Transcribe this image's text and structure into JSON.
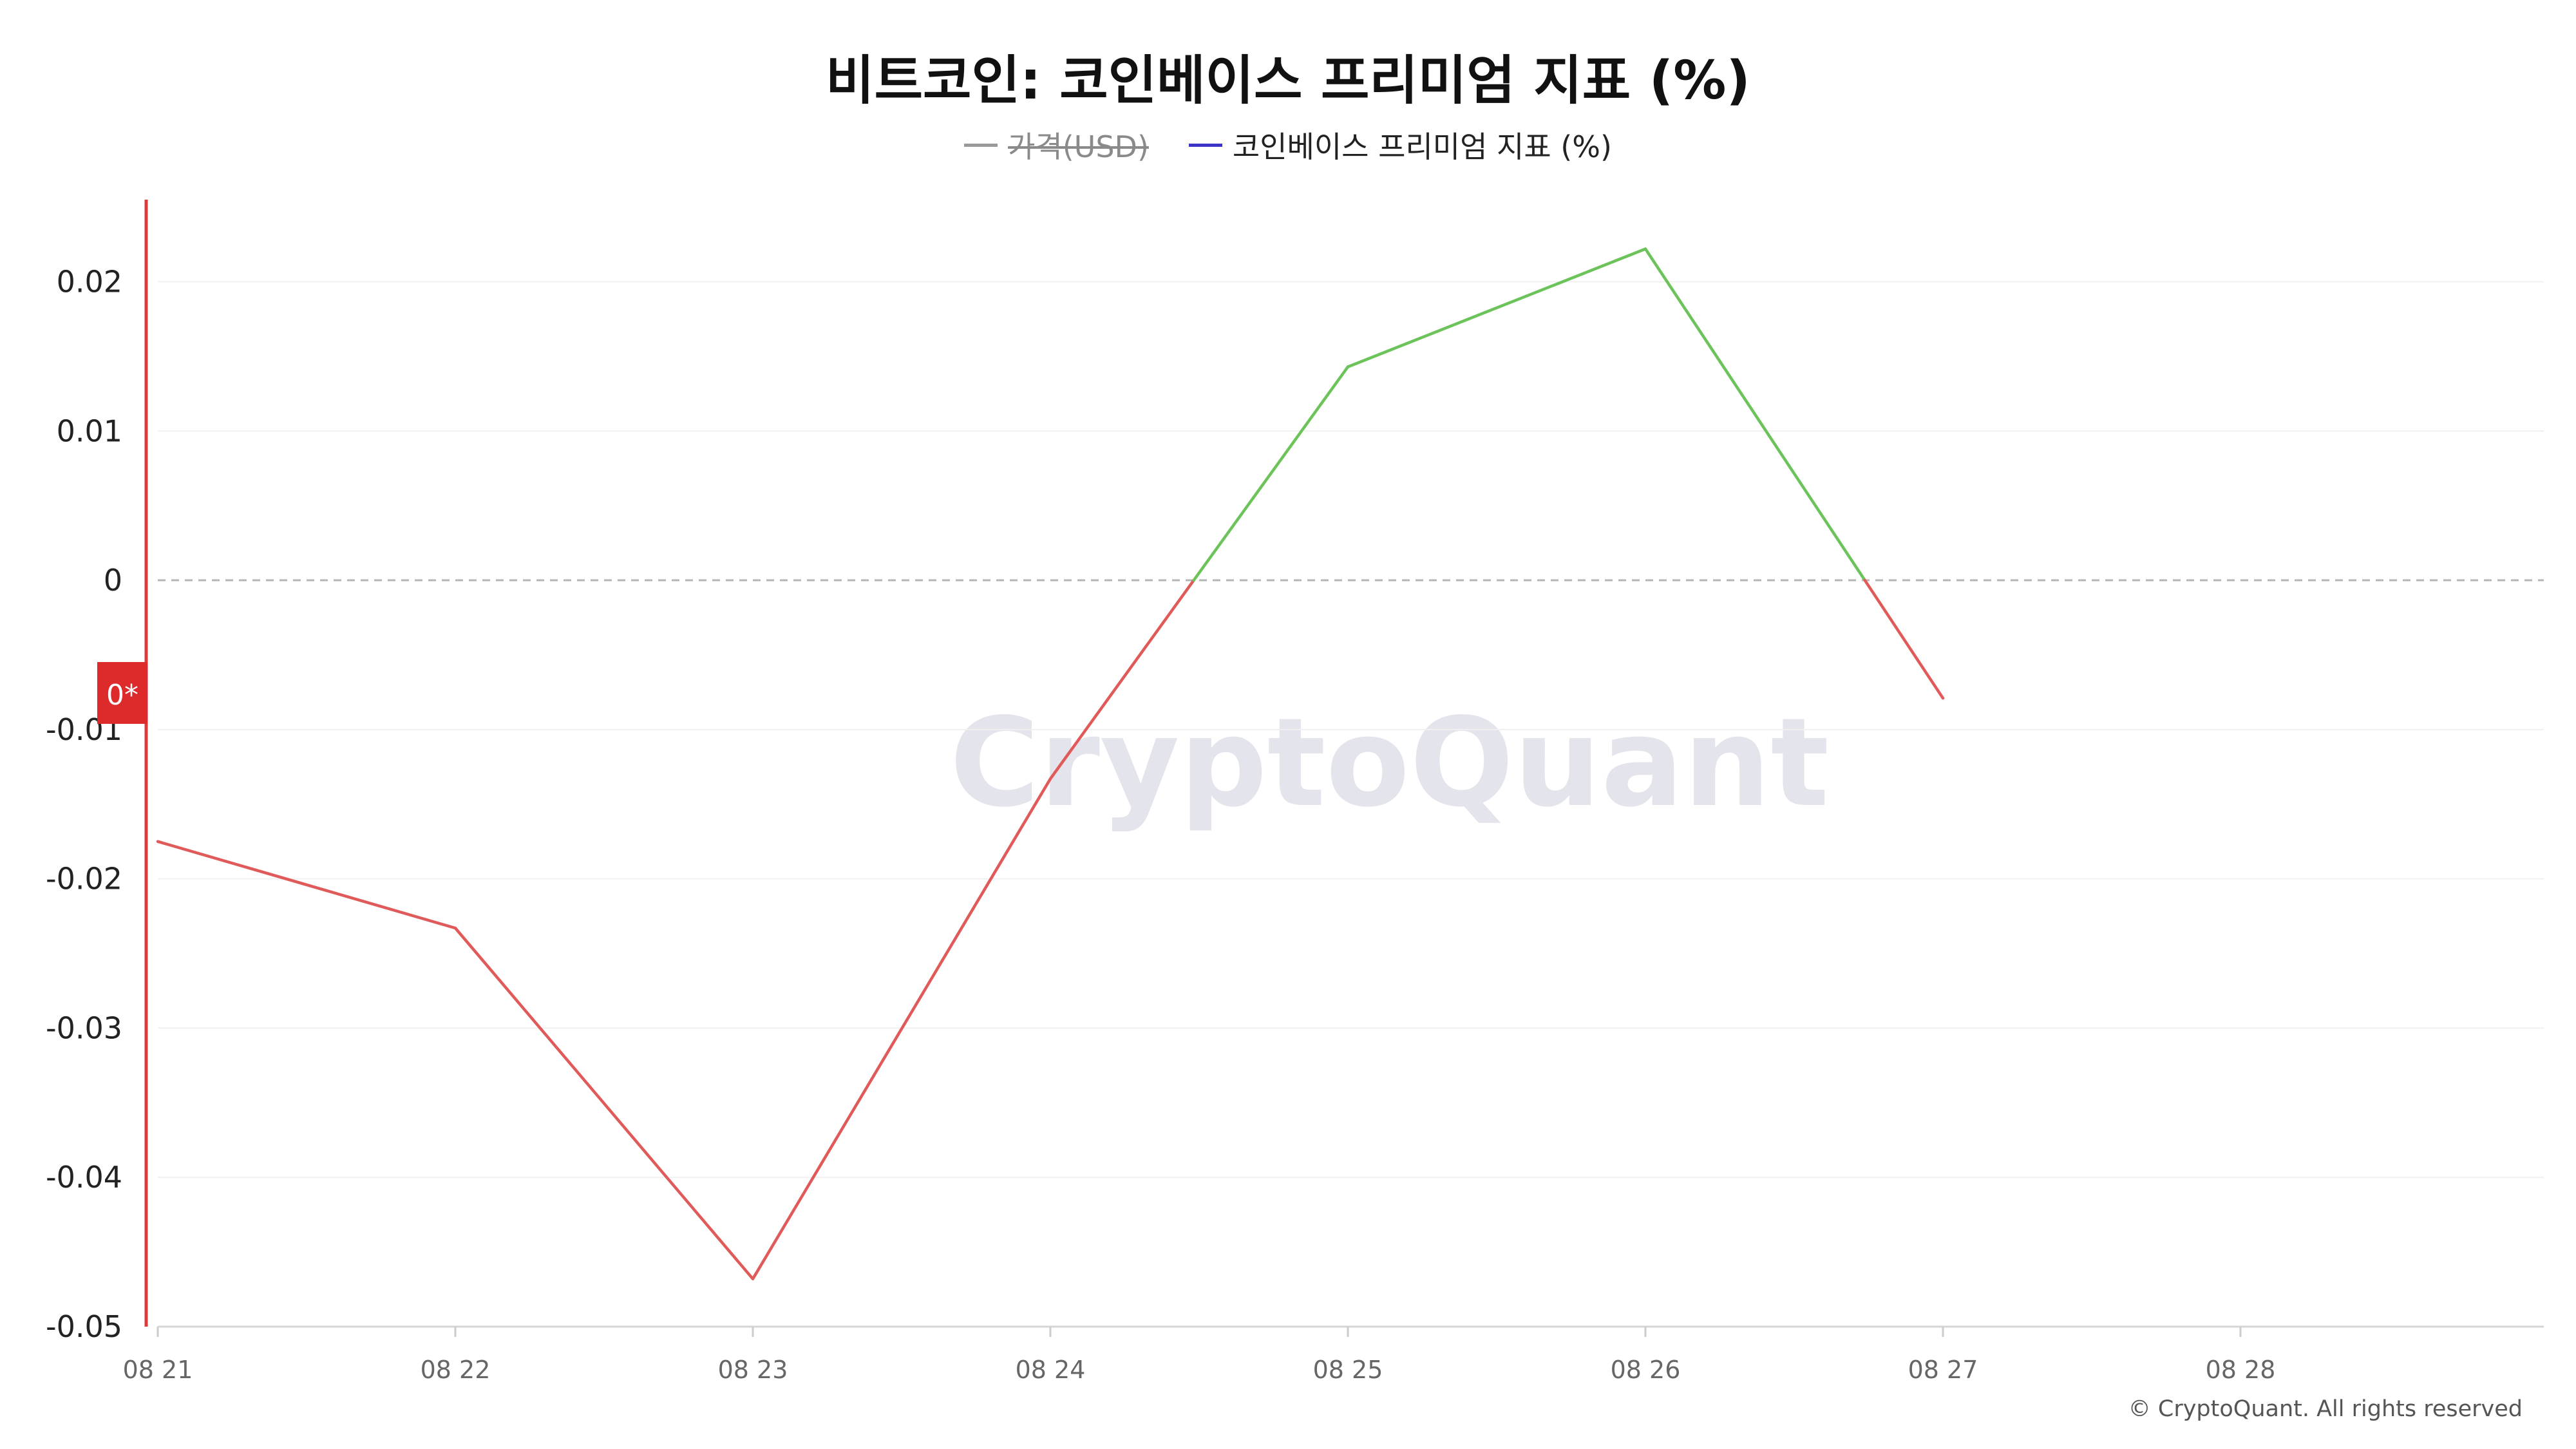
{
  "chart_data": {
    "type": "line",
    "title": "비트코인: 코인베이스 프리미엄 지표 (%)",
    "legend": [
      {
        "name": "가격(USD)",
        "color": "#9a9a9a",
        "hidden": true
      },
      {
        "name": "코인베이스 프리미엄 지표 (%)",
        "color": "#3d35c8",
        "hidden": false
      }
    ],
    "x": [
      "08 21",
      "08 22",
      "08 23",
      "08 24",
      "08 25",
      "08 26",
      "08 27",
      "08 28"
    ],
    "series": [
      {
        "name": "코인베이스 프리미엄 지표 (%)",
        "values": [
          -0.0175,
          -0.0233,
          -0.0468,
          -0.0133,
          0.0143,
          0.0222,
          -0.0079,
          null
        ],
        "positive_color": "#6cc35a",
        "negative_color": "#e05a5a"
      }
    ],
    "yticks": [
      "0.02",
      "0.01",
      "0",
      "-0.01",
      "-0.02",
      "-0.03",
      "-0.04",
      "-0.05"
    ],
    "ytick_values": [
      0.02,
      0.01,
      0,
      -0.01,
      -0.02,
      -0.03,
      -0.04,
      -0.05
    ],
    "ylim": [
      -0.05,
      0.0255
    ],
    "reference_line": {
      "value": 0,
      "style": "dashed"
    },
    "current_value_label": "0*",
    "watermark": "CryptoQuant",
    "copyright": "© CryptoQuant. All rights reserved",
    "grid": true
  }
}
